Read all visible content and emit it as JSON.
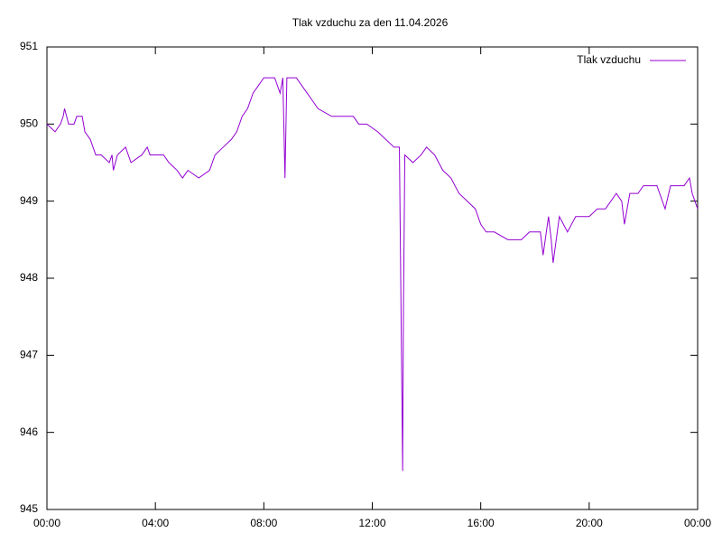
{
  "chart_data": {
    "type": "line",
    "title": "Tlak vzduchu za den 11.04.2026",
    "x": [
      0,
      0.3,
      0.5,
      0.6,
      0.65,
      0.8,
      1.0,
      1.1,
      1.3,
      1.4,
      1.6,
      1.7,
      1.8,
      2.0,
      2.3,
      2.4,
      2.45,
      2.6,
      2.9,
      3.0,
      3.1,
      3.5,
      3.7,
      3.8,
      4.0,
      4.3,
      4.5,
      4.8,
      5.0,
      5.2,
      5.6,
      6.0,
      6.2,
      6.5,
      6.8,
      7.0,
      7.2,
      7.4,
      7.6,
      7.8,
      8.0,
      8.2,
      8.4,
      8.6,
      8.7,
      8.78,
      8.85,
      9.2,
      9.4,
      9.6,
      9.8,
      10.0,
      10.5,
      11.0,
      11.3,
      11.5,
      11.8,
      12.2,
      12.5,
      12.8,
      13.0,
      13.12,
      13.15,
      13.2,
      13.5,
      13.8,
      14.0,
      14.3,
      14.6,
      14.9,
      15.2,
      15.5,
      15.8,
      16.0,
      16.2,
      16.5,
      17.0,
      17.5,
      17.8,
      18.2,
      18.3,
      18.5,
      18.6,
      18.67,
      18.9,
      19.2,
      19.5,
      20.0,
      20.3,
      20.6,
      20.8,
      21.0,
      21.2,
      21.3,
      21.5,
      21.8,
      22.0,
      22.5,
      22.8,
      23.0,
      23.5,
      23.7,
      23.8,
      24.0
    ],
    "series": [
      {
        "name": "Tlak vzduchu",
        "color": "#9400d3",
        "values": [
          950.0,
          949.9,
          950.0,
          950.1,
          950.2,
          950.0,
          950.0,
          950.1,
          950.1,
          949.9,
          949.8,
          949.7,
          949.6,
          949.6,
          949.5,
          949.6,
          949.4,
          949.6,
          949.7,
          949.6,
          949.5,
          949.6,
          949.7,
          949.6,
          949.6,
          949.6,
          949.5,
          949.4,
          949.3,
          949.4,
          949.3,
          949.4,
          949.6,
          949.7,
          949.8,
          949.9,
          950.1,
          950.2,
          950.4,
          950.5,
          950.6,
          950.6,
          950.6,
          950.4,
          950.6,
          949.3,
          950.6,
          950.6,
          950.5,
          950.4,
          950.3,
          950.2,
          950.1,
          950.1,
          950.1,
          950.0,
          950.0,
          949.9,
          949.8,
          949.7,
          949.7,
          945.5,
          947.6,
          949.6,
          949.5,
          949.6,
          949.7,
          949.6,
          949.4,
          949.3,
          949.1,
          949.0,
          948.9,
          948.7,
          948.6,
          948.6,
          948.5,
          948.5,
          948.6,
          948.6,
          948.3,
          948.8,
          948.5,
          948.2,
          948.8,
          948.6,
          948.8,
          948.8,
          948.9,
          948.9,
          949.0,
          949.1,
          949.0,
          948.7,
          949.1,
          949.1,
          949.2,
          949.2,
          948.9,
          949.2,
          949.2,
          949.3,
          949.1,
          948.9
        ]
      }
    ],
    "xlim": [
      0,
      24
    ],
    "xticks": [
      {
        "value": 0,
        "label": "00:00"
      },
      {
        "value": 4,
        "label": "04:00"
      },
      {
        "value": 8,
        "label": "08:00"
      },
      {
        "value": 12,
        "label": "12:00"
      },
      {
        "value": 16,
        "label": "16:00"
      },
      {
        "value": 20,
        "label": "20:00"
      },
      {
        "value": 24,
        "label": "00:00"
      }
    ],
    "ylim": [
      945,
      951
    ],
    "yticks": [
      945,
      946,
      947,
      948,
      949,
      950,
      951
    ],
    "grid": false,
    "legend": "top-right"
  }
}
